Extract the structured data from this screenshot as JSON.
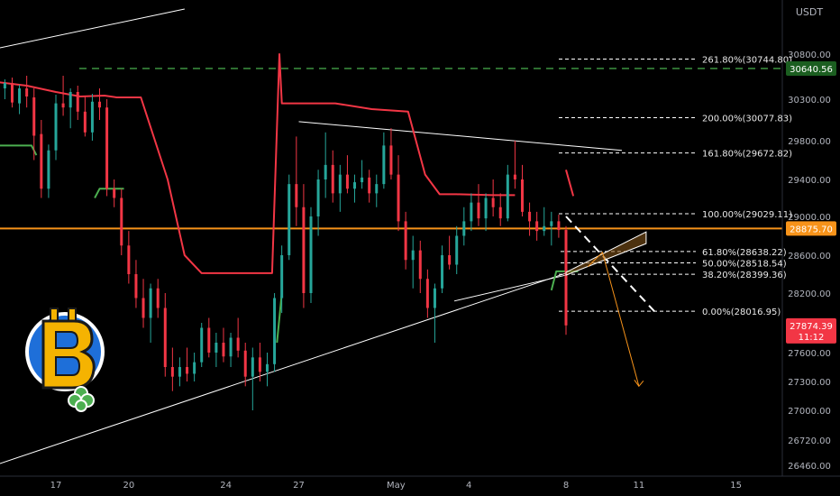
{
  "chart_data": {
    "type": "candlestick",
    "currency": "USDT",
    "y_ticks": [
      26460,
      26720,
      27000,
      27300,
      27600,
      28200,
      28600,
      29000,
      29400,
      29800,
      30300,
      30800
    ],
    "y_range": [
      26400,
      31300
    ],
    "x_ticks": [
      {
        "label": "17",
        "day": 17
      },
      {
        "label": "20",
        "day": 20
      },
      {
        "label": "24",
        "day": 24
      },
      {
        "label": "27",
        "day": 27
      },
      {
        "label": "May",
        "day": 31
      },
      {
        "label": "4",
        "day": 34
      },
      {
        "label": "8",
        "day": 38
      },
      {
        "label": "11",
        "day": 41
      },
      {
        "label": "15",
        "day": 45
      }
    ],
    "fib_levels": [
      {
        "label": "261.80%(30744.80)",
        "value": 30744.8
      },
      {
        "label": "200.00%(30077.83)",
        "value": 30077.83
      },
      {
        "label": "161.80%(29672.82)",
        "value": 29672.82
      },
      {
        "label": "100.00%(29029.11)",
        "value": 29029.11
      },
      {
        "label": "61.80%(28638.22)",
        "value": 28638.22
      },
      {
        "label": "50.00%(28518.54)",
        "value": 28518.54
      },
      {
        "label": "38.20%(28399.36)",
        "value": 28399.36
      },
      {
        "label": "0.00%(28016.95)",
        "value": 28016.95
      }
    ],
    "price_tags": [
      {
        "text": "30640.56",
        "value": 30640.56,
        "bg": "#1b5e20",
        "fg": "#ffffff"
      },
      {
        "text": "28875.70",
        "value": 28875.7,
        "bg": "#f7931a",
        "fg": "#ffffff"
      },
      {
        "text": "27874.39",
        "value": 27874.39,
        "bg": "#f23645",
        "fg": "#ffffff",
        "sub": "11:12"
      }
    ],
    "horizontal_lines": [
      {
        "value": 30640.56,
        "color": "#43a047",
        "style": "dashed"
      },
      {
        "value": 28875.7,
        "color": "#f7931a",
        "style": "solid"
      }
    ],
    "trend_lines": [
      {
        "from": [
          14.0,
          30830
        ],
        "to": [
          22.3,
          31300
        ],
        "color": "#ffffff"
      },
      {
        "from": [
          14.0,
          26420
        ],
        "to": [
          38.0,
          28410
        ],
        "color": "#ffffff"
      },
      {
        "from": [
          27.0,
          30030
        ],
        "to": [
          40.3,
          29700
        ],
        "color": "#ffffff"
      },
      {
        "from": [
          33.4,
          28120
        ],
        "to": [
          38.0,
          28390
        ],
        "color": "#ffffff"
      }
    ],
    "supertrend_segments": [
      {
        "color": "#f23645",
        "points": [
          [
            14.3,
            30500
          ],
          [
            15.8,
            30450
          ],
          [
            17.0,
            30380
          ],
          [
            18.0,
            30330
          ],
          [
            19.0,
            30340
          ],
          [
            19.5,
            30320
          ],
          [
            20.5,
            30320
          ],
          [
            21.6,
            29400
          ],
          [
            22.3,
            28600
          ],
          [
            23.0,
            28410
          ],
          [
            25.9,
            28410
          ],
          [
            26.2,
            30800
          ],
          [
            26.3,
            30250
          ],
          [
            28.5,
            30250
          ],
          [
            30.0,
            30180
          ],
          [
            31.5,
            30150
          ],
          [
            32.2,
            29450
          ],
          [
            32.8,
            29240
          ],
          [
            33.5,
            29240
          ],
          [
            35.0,
            29230
          ],
          [
            35.9,
            29230
          ]
        ]
      },
      {
        "color": "#f23645",
        "points": [
          [
            38.0,
            29500
          ],
          [
            38.3,
            29220
          ]
        ]
      },
      {
        "color": "#4caf50",
        "points": [
          [
            14.0,
            29750
          ],
          [
            16.0,
            29750
          ],
          [
            16.2,
            29650
          ]
        ]
      },
      {
        "color": "#4caf50",
        "points": [
          [
            18.6,
            29200
          ],
          [
            18.8,
            29300
          ],
          [
            19.8,
            29300
          ]
        ]
      },
      {
        "color": "#4caf50",
        "points": [
          [
            26.1,
            27700
          ],
          [
            26.3,
            28200
          ]
        ]
      },
      {
        "color": "#4caf50",
        "points": [
          [
            37.4,
            28230
          ],
          [
            37.6,
            28430
          ],
          [
            38.5,
            28430
          ]
        ]
      }
    ],
    "projection": {
      "dashed_from": [
        38.0,
        29000
      ],
      "dashed_to": [
        41.7,
        28000
      ],
      "wedge_points": [
        [
          38.0,
          28420
        ],
        [
          41.3,
          28840
        ],
        [
          41.3,
          28720
        ],
        [
          38.0,
          28390
        ]
      ],
      "arrow_points": [
        [
          38.9,
          28480
        ],
        [
          39.5,
          28630
        ],
        [
          41.0,
          27250
        ]
      ],
      "arrow_color": "#f7931a"
    },
    "candles": [
      [
        14.0,
        30470,
        30600,
        30300,
        30350
      ],
      [
        14.3,
        30380,
        30560,
        30250,
        30520
      ],
      [
        14.6,
        30520,
        30650,
        30380,
        30430
      ],
      [
        14.9,
        30420,
        30520,
        30300,
        30480
      ],
      [
        15.2,
        30480,
        30540,
        30200,
        30260
      ],
      [
        15.5,
        30250,
        30460,
        30120,
        30420
      ],
      [
        15.8,
        30420,
        30560,
        30200,
        30330
      ],
      [
        16.1,
        30320,
        30420,
        29600,
        29860
      ],
      [
        16.4,
        29880,
        30050,
        29200,
        29300
      ],
      [
        16.7,
        29300,
        29760,
        29200,
        29700
      ],
      [
        17.0,
        29700,
        30350,
        29600,
        30250
      ],
      [
        17.3,
        30250,
        30560,
        30100,
        30200
      ],
      [
        17.6,
        30200,
        30420,
        29950,
        30380
      ],
      [
        17.9,
        30380,
        30450,
        30050,
        30150
      ],
      [
        18.2,
        30150,
        30340,
        29850,
        29900
      ],
      [
        18.5,
        29900,
        30360,
        29800,
        30270
      ],
      [
        18.8,
        30270,
        30420,
        30050,
        30200
      ],
      [
        19.1,
        30200,
        30300,
        29220,
        29300
      ],
      [
        19.4,
        29300,
        29400,
        29100,
        29200
      ],
      [
        19.7,
        29200,
        29300,
        28600,
        28700
      ],
      [
        20.0,
        28700,
        28850,
        28300,
        28400
      ],
      [
        20.3,
        28400,
        28550,
        28050,
        28150
      ],
      [
        20.6,
        28150,
        28350,
        27850,
        27950
      ],
      [
        20.9,
        27950,
        28300,
        27700,
        28250
      ],
      [
        21.2,
        28250,
        28350,
        27950,
        28050
      ],
      [
        21.5,
        28050,
        28200,
        27350,
        27450
      ],
      [
        21.8,
        27450,
        27650,
        27200,
        27350
      ],
      [
        22.1,
        27350,
        27550,
        27250,
        27450
      ],
      [
        22.4,
        27450,
        27650,
        27300,
        27380
      ],
      [
        22.7,
        27380,
        27600,
        27300,
        27500
      ],
      [
        23.0,
        27500,
        27900,
        27450,
        27850
      ],
      [
        23.3,
        27850,
        27950,
        27550,
        27600
      ],
      [
        23.6,
        27600,
        27800,
        27450,
        27700
      ],
      [
        23.9,
        27700,
        27850,
        27500,
        27560
      ],
      [
        24.2,
        27560,
        27800,
        27450,
        27750
      ],
      [
        24.5,
        27750,
        27950,
        27550,
        27620
      ],
      [
        24.8,
        27620,
        27700,
        27250,
        27350
      ],
      [
        25.1,
        27350,
        27650,
        27000,
        27550
      ],
      [
        25.4,
        27550,
        27700,
        27300,
        27400
      ],
      [
        25.7,
        27400,
        27600,
        27250,
        27480
      ],
      [
        26.0,
        27480,
        28200,
        27400,
        28150
      ],
      [
        26.3,
        28150,
        28700,
        28000,
        28600
      ],
      [
        26.6,
        28600,
        29450,
        28550,
        29350
      ],
      [
        26.9,
        29350,
        29850,
        28900,
        29100
      ],
      [
        27.2,
        29100,
        29350,
        28050,
        28200
      ],
      [
        27.5,
        28200,
        29100,
        28100,
        29000
      ],
      [
        27.8,
        29000,
        29500,
        28800,
        29400
      ],
      [
        28.1,
        29400,
        29900,
        29200,
        29550
      ],
      [
        28.4,
        29550,
        29700,
        29150,
        29250
      ],
      [
        28.7,
        29250,
        29550,
        29050,
        29450
      ],
      [
        29.0,
        29450,
        29650,
        29250,
        29300
      ],
      [
        29.3,
        29300,
        29450,
        29150,
        29370
      ],
      [
        29.6,
        29370,
        29600,
        29300,
        29420
      ],
      [
        29.9,
        29420,
        29500,
        29150,
        29250
      ],
      [
        30.2,
        29250,
        29450,
        29100,
        29350
      ],
      [
        30.5,
        29350,
        29900,
        29300,
        29750
      ],
      [
        30.8,
        29750,
        29950,
        29400,
        29450
      ],
      [
        31.1,
        29450,
        29650,
        28850,
        28950
      ],
      [
        31.4,
        28950,
        29050,
        28450,
        28550
      ],
      [
        31.7,
        28550,
        28800,
        28250,
        28650
      ],
      [
        32.0,
        28650,
        28750,
        28200,
        28350
      ],
      [
        32.3,
        28350,
        28450,
        27950,
        28050
      ],
      [
        32.6,
        28050,
        28300,
        27700,
        28250
      ],
      [
        32.9,
        28250,
        28700,
        28200,
        28600
      ],
      [
        33.2,
        28600,
        28800,
        28450,
        28500
      ],
      [
        33.5,
        28500,
        28900,
        28400,
        28800
      ],
      [
        33.8,
        28800,
        29100,
        28700,
        28950
      ],
      [
        34.1,
        28950,
        29250,
        28850,
        29150
      ],
      [
        34.4,
        29150,
        29350,
        28900,
        28980
      ],
      [
        34.7,
        28980,
        29250,
        28850,
        29200
      ],
      [
        35.0,
        29200,
        29400,
        29000,
        29100
      ],
      [
        35.3,
        29100,
        29250,
        28900,
        28980
      ],
      [
        35.6,
        28980,
        29550,
        28950,
        29450
      ],
      [
        35.9,
        29450,
        29800,
        29300,
        29400
      ],
      [
        36.2,
        29400,
        29550,
        29000,
        29050
      ],
      [
        36.5,
        29050,
        29150,
        28800,
        28950
      ],
      [
        36.8,
        28950,
        29050,
        28750,
        28850
      ],
      [
        37.1,
        28850,
        29100,
        28800,
        28900
      ],
      [
        37.4,
        28900,
        29050,
        28700,
        28950
      ],
      [
        37.7,
        28950,
        29020,
        28780,
        28860
      ],
      [
        38.0,
        28860,
        28900,
        27780,
        27874.39
      ]
    ]
  },
  "axis": {
    "currency": "USDT"
  }
}
